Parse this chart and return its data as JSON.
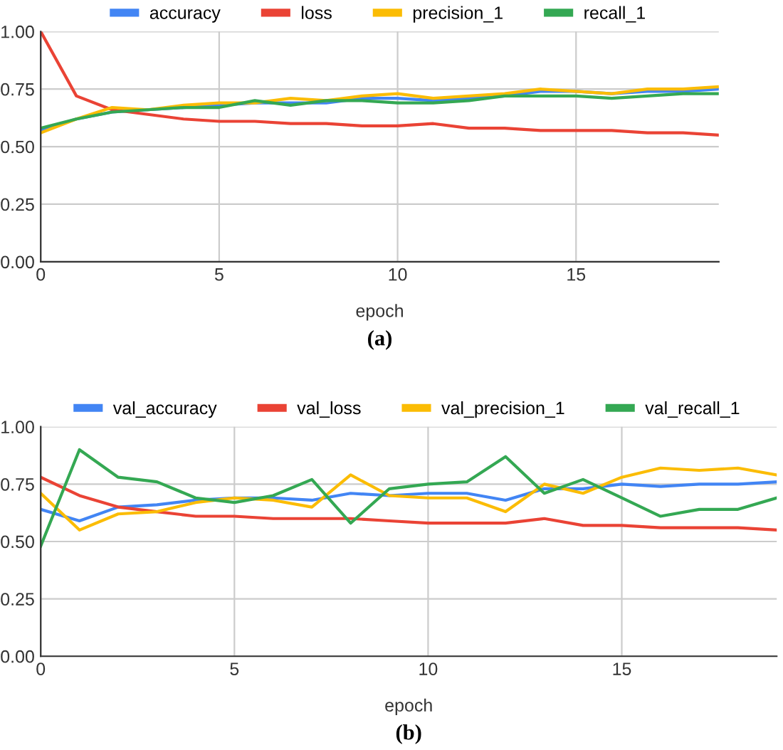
{
  "chart_data": [
    {
      "type": "line",
      "xlabel": "epoch",
      "annotations": [
        "(a)"
      ],
      "legend": "top",
      "grid": true,
      "marker": "none",
      "line_style": "solid",
      "x": [
        0,
        1,
        2,
        3,
        4,
        5,
        6,
        7,
        8,
        9,
        10,
        11,
        12,
        13,
        14,
        15,
        16,
        17,
        18,
        19
      ],
      "xlim": [
        0,
        19
      ],
      "xticks": [
        0,
        5,
        10,
        15
      ],
      "ylim": [
        0,
        1
      ],
      "yticks": [
        {
          "value": 0,
          "label": "0.00"
        },
        {
          "value": 0.25,
          "label": "0.25"
        },
        {
          "value": 0.5,
          "label": "0.50"
        },
        {
          "value": 0.75,
          "label": "0.75"
        },
        {
          "value": 1,
          "label": "1.00"
        }
      ],
      "series": [
        {
          "name": "accuracy",
          "color": "#4285f4",
          "values": [
            0.57,
            0.62,
            0.65,
            0.66,
            0.67,
            0.68,
            0.69,
            0.69,
            0.69,
            0.71,
            0.71,
            0.7,
            0.71,
            0.72,
            0.74,
            0.74,
            0.73,
            0.74,
            0.74,
            0.75
          ]
        },
        {
          "name": "loss",
          "color": "#ea4335",
          "values": [
            1.0,
            0.72,
            0.66,
            0.64,
            0.62,
            0.61,
            0.61,
            0.6,
            0.6,
            0.59,
            0.59,
            0.6,
            0.58,
            0.58,
            0.57,
            0.57,
            0.57,
            0.56,
            0.56,
            0.55
          ]
        },
        {
          "name": "precision_1",
          "color": "#fbbc04",
          "values": [
            0.56,
            0.62,
            0.67,
            0.66,
            0.68,
            0.69,
            0.69,
            0.71,
            0.7,
            0.72,
            0.73,
            0.71,
            0.72,
            0.73,
            0.75,
            0.74,
            0.73,
            0.75,
            0.75,
            0.76
          ]
        },
        {
          "name": "recall_1",
          "color": "#34a853",
          "values": [
            0.58,
            0.62,
            0.65,
            0.66,
            0.67,
            0.67,
            0.7,
            0.68,
            0.7,
            0.7,
            0.69,
            0.69,
            0.7,
            0.72,
            0.72,
            0.72,
            0.71,
            0.72,
            0.73,
            0.73
          ]
        }
      ]
    },
    {
      "type": "line",
      "xlabel": "epoch",
      "annotations": [
        "(b)"
      ],
      "legend": "top",
      "grid": true,
      "marker": "none",
      "line_style": "solid",
      "x": [
        0,
        1,
        2,
        3,
        4,
        5,
        6,
        7,
        8,
        9,
        10,
        11,
        12,
        13,
        14,
        15,
        16,
        17,
        18,
        19
      ],
      "xlim": [
        0,
        19
      ],
      "xticks": [
        0,
        5,
        10,
        15
      ],
      "ylim": [
        0,
        1
      ],
      "yticks": [
        {
          "value": 0,
          "label": "0.00"
        },
        {
          "value": 0.25,
          "label": "0.25"
        },
        {
          "value": 0.5,
          "label": "0.50"
        },
        {
          "value": 0.75,
          "label": "0.75"
        },
        {
          "value": 1,
          "label": "1.00"
        }
      ],
      "series": [
        {
          "name": "val_accuracy",
          "color": "#4285f4",
          "values": [
            0.64,
            0.59,
            0.65,
            0.66,
            0.68,
            0.69,
            0.69,
            0.68,
            0.71,
            0.7,
            0.71,
            0.71,
            0.68,
            0.73,
            0.73,
            0.75,
            0.74,
            0.75,
            0.75,
            0.76
          ]
        },
        {
          "name": "val_loss",
          "color": "#ea4335",
          "values": [
            0.78,
            0.7,
            0.65,
            0.63,
            0.61,
            0.61,
            0.6,
            0.6,
            0.6,
            0.59,
            0.58,
            0.58,
            0.58,
            0.6,
            0.57,
            0.57,
            0.56,
            0.56,
            0.56,
            0.55
          ]
        },
        {
          "name": "val_precision_1",
          "color": "#fbbc04",
          "values": [
            0.71,
            0.55,
            0.62,
            0.63,
            0.67,
            0.69,
            0.68,
            0.65,
            0.79,
            0.7,
            0.69,
            0.69,
            0.63,
            0.75,
            0.71,
            0.78,
            0.82,
            0.81,
            0.82,
            0.79
          ]
        },
        {
          "name": "val_recall_1",
          "color": "#34a853",
          "values": [
            0.48,
            0.9,
            0.78,
            0.76,
            0.69,
            0.67,
            0.7,
            0.77,
            0.58,
            0.73,
            0.75,
            0.76,
            0.87,
            0.71,
            0.77,
            0.69,
            0.61,
            0.64,
            0.64,
            0.69
          ]
        }
      ]
    }
  ]
}
